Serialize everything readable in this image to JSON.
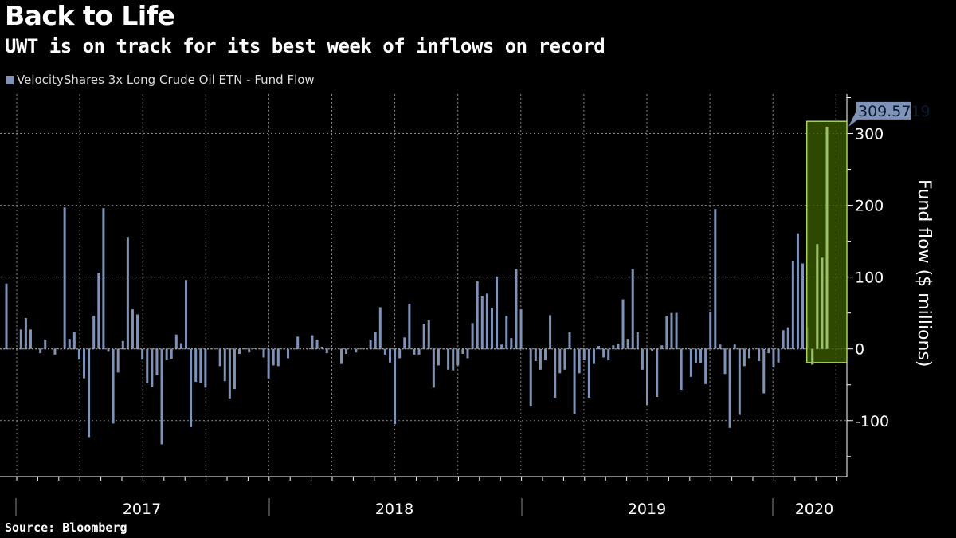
{
  "title": "Back to Life",
  "subtitle": "UWT is on track for its best week of inflows on record",
  "source": "Source: Bloomberg",
  "colors": {
    "bar": "#7f93b8",
    "highlight_fill": "#3b5a00",
    "highlight_border": "#a6d25a",
    "label_bg": "#7f93b8"
  },
  "chart_data": {
    "type": "bar",
    "title": "Back to Life",
    "subtitle": "UWT is on track for its best week of inflows on record",
    "legend": [
      "VelocityShares 3x Long Crude Oil ETN - Fund Flow"
    ],
    "legend_position": "top-left",
    "xlabel": "",
    "ylabel": "Fund flow ($ millions)",
    "ylim": [
      -178,
      355
    ],
    "yticks": [
      -100,
      0,
      100,
      200,
      300
    ],
    "ytick_labels": [
      "-100",
      "0",
      "100",
      "200",
      "300"
    ],
    "x_period": "weekly, Jan 2017 - Feb 2020",
    "year_labels": [
      "2017",
      "2018",
      "2019",
      "2020"
    ],
    "grid": true,
    "last_value_label": "309.5719",
    "highlight": {
      "from_index": 166,
      "to_index": 169,
      "ymin": -19,
      "ymax": 317
    },
    "series": [
      {
        "name": "VelocityShares 3x Long Crude Oil ETN - Fund Flow",
        "values": [
          91,
          0,
          0,
          27,
          43,
          27,
          0,
          -6,
          13,
          0,
          -8,
          0,
          197,
          14,
          24,
          -15,
          -41,
          -123,
          46,
          106,
          196,
          -4,
          -104,
          -33,
          11,
          156,
          55,
          48,
          -15,
          -48,
          -53,
          -37,
          -133,
          -16,
          -14,
          20,
          8,
          96,
          -109,
          -46,
          -47,
          -54,
          0,
          0,
          -24,
          -45,
          -69,
          -56,
          -7,
          1,
          -5,
          1,
          0,
          -12,
          -41,
          -23,
          -24,
          0,
          -13,
          0,
          17,
          0,
          0,
          19,
          13,
          3,
          -6,
          0,
          0,
          -21,
          -7,
          0,
          -5,
          0,
          0,
          13,
          24,
          58,
          -8,
          -19,
          -105,
          -13,
          16,
          63,
          -8,
          -8,
          35,
          40,
          -54,
          -23,
          0,
          -29,
          -30,
          -23,
          -7,
          -13,
          36,
          94,
          74,
          77,
          57,
          101,
          6,
          46,
          15,
          111,
          55,
          1,
          -80,
          -17,
          -29,
          -16,
          47,
          -68,
          -34,
          -29,
          23,
          -91,
          -34,
          -16,
          -68,
          -21,
          4,
          -12,
          -16,
          5,
          7,
          69,
          14,
          111,
          23,
          -29,
          -78,
          -3,
          -67,
          5,
          46,
          50,
          50,
          -57,
          0,
          -39,
          -20,
          -20,
          -49,
          51,
          195,
          6,
          -35,
          -110,
          6,
          -92,
          -24,
          -13,
          0,
          -17,
          -62,
          -6,
          -26,
          -19,
          26,
          30,
          122,
          161,
          119,
          30,
          -22,
          146,
          127,
          309.5719
        ]
      }
    ]
  }
}
